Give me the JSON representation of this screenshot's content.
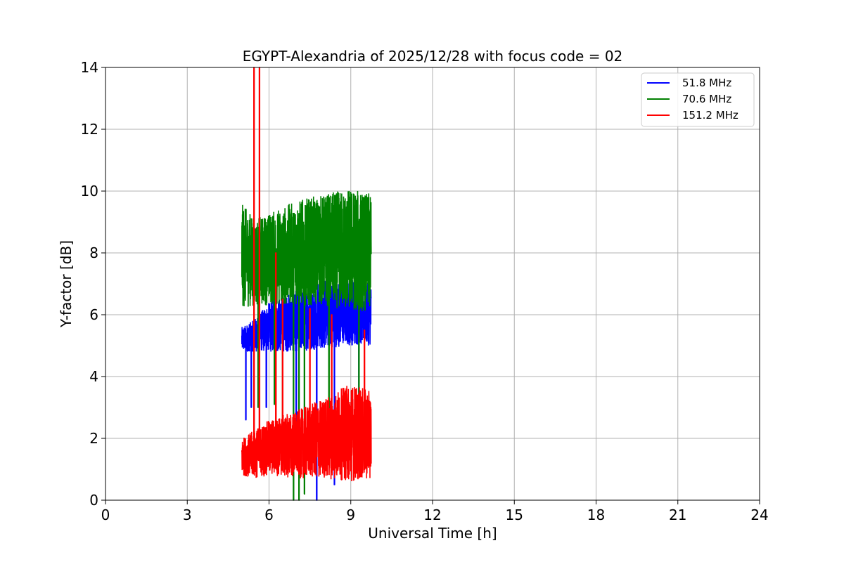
{
  "chart_data": {
    "type": "line",
    "title": "EGYPT-Alexandria of 2025/12/28 with focus code = 02",
    "xlabel": "Universal Time [h]",
    "ylabel": "Y-factor [dB]",
    "xlim": [
      0,
      24
    ],
    "ylim": [
      0,
      14
    ],
    "xticks": [
      0,
      3,
      6,
      9,
      12,
      15,
      18,
      21,
      24
    ],
    "yticks": [
      0,
      2,
      4,
      6,
      8,
      10,
      12,
      14
    ],
    "grid": true,
    "legend_position": "top-right",
    "series": [
      {
        "name": "51.8 MHz",
        "label": " 51.8 MHz",
        "color": "#0000ff",
        "x_start": 5.0,
        "x_end": 9.75,
        "baseline": 5.3,
        "envelope": [
          [
            5.0,
            5.2,
            0.4
          ],
          [
            5.4,
            5.3,
            0.5
          ],
          [
            6.0,
            5.6,
            0.8
          ],
          [
            7.0,
            5.8,
            1.0
          ],
          [
            8.0,
            6.0,
            1.1
          ],
          [
            9.0,
            6.1,
            1.1
          ],
          [
            9.75,
            6.0,
            1.0
          ]
        ],
        "dips": [
          [
            5.15,
            2.6
          ],
          [
            5.35,
            3.0
          ],
          [
            5.9,
            3.0
          ],
          [
            7.0,
            1.8
          ],
          [
            7.75,
            0.0
          ],
          [
            8.4,
            0.5
          ],
          [
            9.3,
            2.6
          ]
        ]
      },
      {
        "name": "70.6 MHz",
        "label": " 70.6 MHz",
        "color": "#008000",
        "x_start": 5.0,
        "x_end": 9.75,
        "baseline": 7.9,
        "envelope": [
          [
            5.0,
            7.9,
            1.7
          ],
          [
            5.5,
            7.7,
            1.4
          ],
          [
            6.0,
            7.8,
            1.5
          ],
          [
            7.0,
            8.0,
            1.7
          ],
          [
            8.0,
            8.1,
            1.8
          ],
          [
            9.0,
            8.1,
            2.0
          ],
          [
            9.75,
            8.0,
            1.9
          ]
        ],
        "dips": [
          [
            5.6,
            3.0
          ],
          [
            6.2,
            3.1
          ],
          [
            6.5,
            2.3
          ],
          [
            6.9,
            0.0
          ],
          [
            7.1,
            0.0
          ],
          [
            7.3,
            0.2
          ],
          [
            8.2,
            1.5
          ],
          [
            9.3,
            2.0
          ]
        ]
      },
      {
        "name": "151.2 MHz",
        "label": "151.2 MHz",
        "color": "#ff0000",
        "x_start": 5.0,
        "x_end": 9.75,
        "baseline": 1.6,
        "envelope": [
          [
            5.0,
            1.4,
            0.6
          ],
          [
            5.5,
            1.5,
            0.8
          ],
          [
            6.0,
            1.7,
            0.9
          ],
          [
            7.0,
            1.8,
            1.1
          ],
          [
            8.0,
            2.0,
            1.3
          ],
          [
            9.0,
            2.2,
            1.6
          ],
          [
            9.75,
            2.1,
            1.4
          ]
        ],
        "spikes": [
          [
            5.45,
            14.0
          ],
          [
            5.65,
            14.0
          ],
          [
            6.25,
            8.0
          ],
          [
            6.5,
            6.5
          ],
          [
            7.5,
            6.2
          ],
          [
            8.3,
            6.0
          ],
          [
            9.5,
            5.5
          ]
        ]
      }
    ]
  }
}
